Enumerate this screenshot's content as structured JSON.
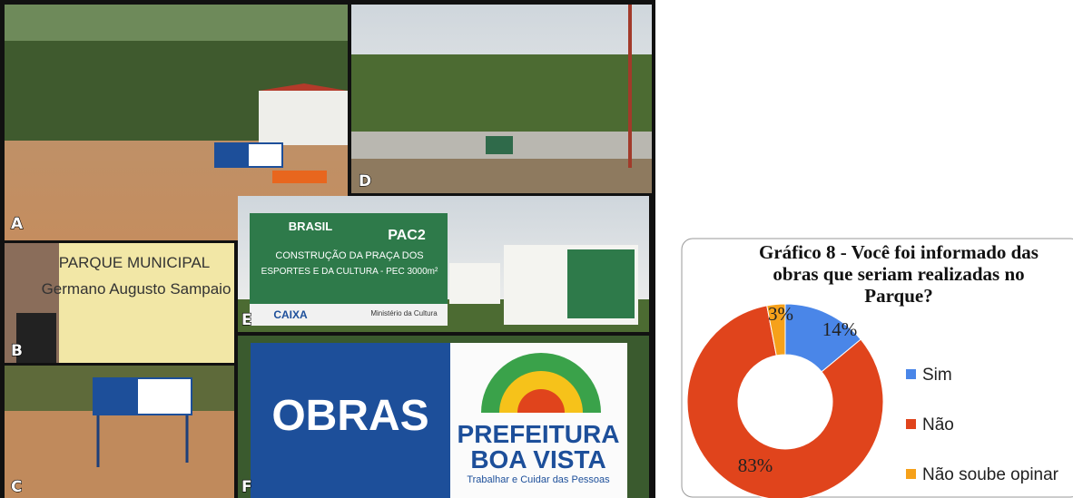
{
  "photos": {
    "panel_labels": [
      "A",
      "B",
      "C",
      "D",
      "E",
      "F"
    ],
    "sign_b": [
      "PARQUE MUNICIPAL",
      "Germano Augusto Sampaio"
    ],
    "sign_obras": "OBRAS",
    "sign_prefeitura": [
      "PREFEITURA",
      "BOA VISTA",
      "Trabalhar e Cuidar das Pessoas"
    ],
    "sign_e": [
      "BRASIL",
      "PAC2",
      "CONSTRUÇÃO DA PRAÇA DOS",
      "ESPORTES E DA CULTURA - PEC 3000m²",
      "CAIXA",
      "Ministério da Cultura"
    ]
  },
  "chart_data": {
    "type": "donut",
    "title": "Gráfico 8 - Você foi informado das obras que seriam realizadas no Parque?",
    "categories": [
      "Sim",
      "Não",
      "Não soube opinar"
    ],
    "values": [
      14,
      83,
      3
    ],
    "value_labels": [
      "14%",
      "83%",
      "3%"
    ],
    "colors": [
      "#4a86e8",
      "#e0441c",
      "#f6a11a"
    ],
    "legend": "right"
  }
}
